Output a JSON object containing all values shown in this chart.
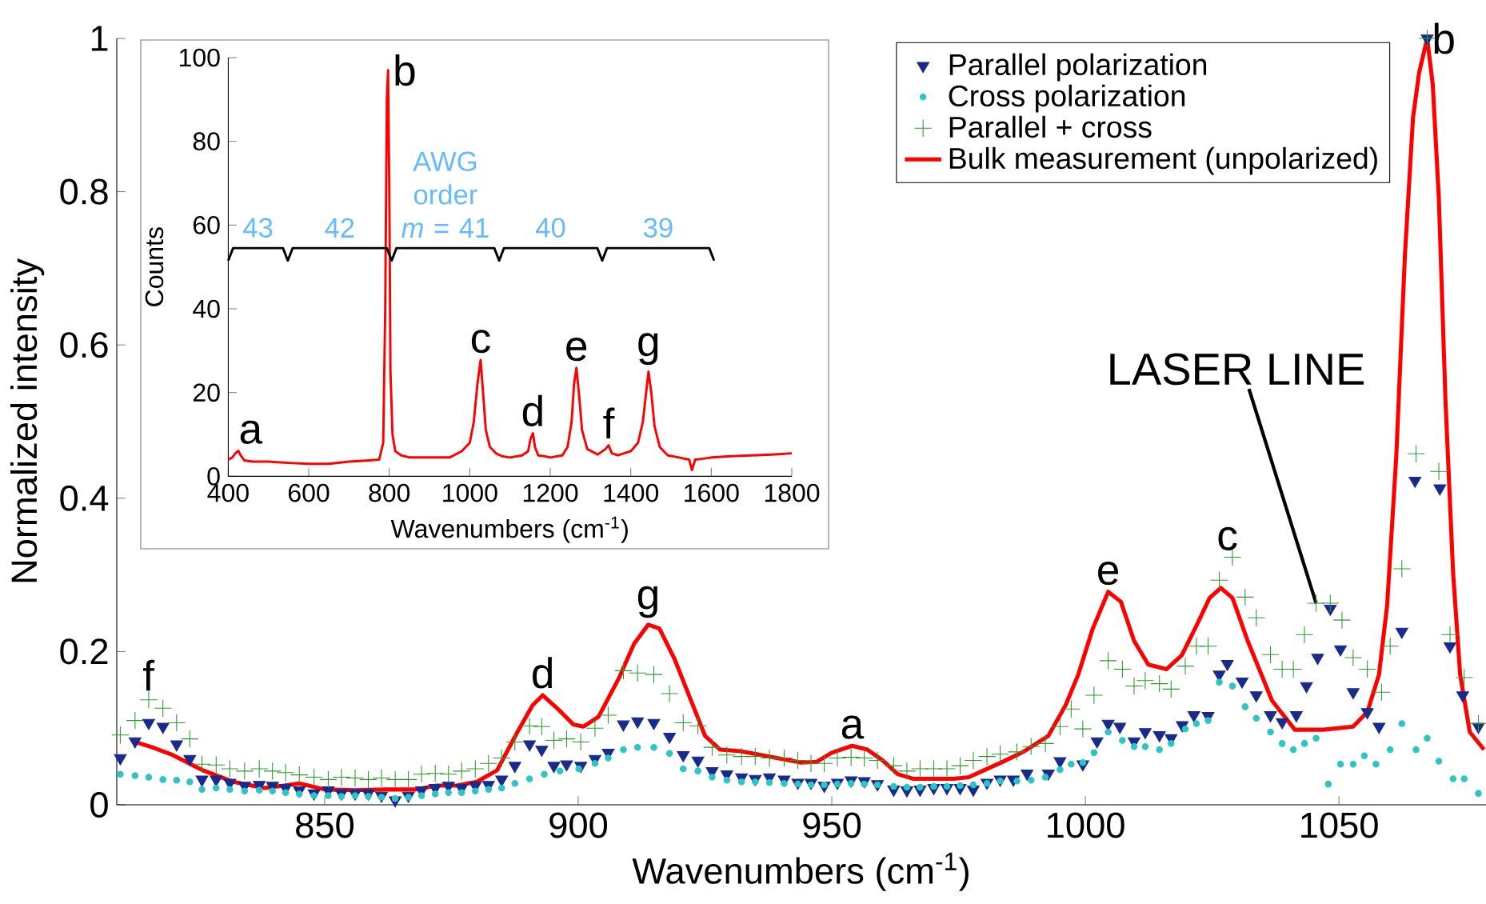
{
  "chart_data": [
    {
      "type": "scatter",
      "xlabel": "Wavenumbers (cm$^{-1}$)",
      "ylabel": "Normalized intensity",
      "xlim": [
        809,
        1079
      ],
      "ylim": [
        0,
        1
      ],
      "xticks": [
        850,
        900,
        950,
        1000,
        1050
      ],
      "yticks": [
        0,
        0.2,
        0.4,
        0.6,
        0.8,
        1
      ],
      "legend": "top right",
      "series": [
        {
          "name": "Parallel polarization",
          "type": "scatter",
          "marker": "triangle",
          "color": "#1a2a8a",
          "x": [
            809.7,
            812.6,
            815.3,
            818.1,
            820.8,
            823.4,
            825.8,
            828.6,
            831.3,
            834.2,
            837.1,
            839.7,
            842.3,
            845.0,
            847.9,
            850.7,
            853.3,
            856.0,
            858.6,
            861.2,
            863.9,
            866.5,
            869.1,
            871.8,
            874.4,
            877.0,
            879.7,
            882.3,
            884.9,
            887.5,
            890.4,
            892.8,
            895.2,
            897.7,
            900.5,
            903.3,
            905.9,
            908.9,
            911.7,
            914.9,
            918.0,
            920.7,
            923.6,
            926.4,
            929.3,
            932.2,
            934.9,
            937.7,
            940.6,
            943.3,
            945.9,
            948.5,
            951.1,
            953.8,
            956.4,
            959.0,
            962.2,
            964.8,
            967.4,
            970.1,
            972.7,
            975.3,
            977.9,
            980.6,
            983.2,
            985.8,
            988.5,
            992.7,
            995.0,
            999.5,
            1002.3,
            1004.5,
            1006.8,
            1009.6,
            1011.8,
            1014.6,
            1016.9,
            1019.1,
            1021.4,
            1024.2,
            1026.4,
            1028.0,
            1030.9,
            1033.7,
            1036.5,
            1038.8,
            1041.6,
            1043.6,
            1045.8,
            1048.3,
            1050.3,
            1052.8,
            1055.6,
            1057.9,
            1062.4,
            1065.0,
            1067.4,
            1069.9,
            1071.9,
            1074.4,
            1077.5
          ],
          "values": [
            0.061,
            0.083,
            0.107,
            0.102,
            0.079,
            0.06,
            0.033,
            0.033,
            0.029,
            0.025,
            0.026,
            0.025,
            0.022,
            0.019,
            0.015,
            0.019,
            0.015,
            0.015,
            0.015,
            0.012,
            0.006,
            0.012,
            0.019,
            0.022,
            0.025,
            0.022,
            0.025,
            0.026,
            0.033,
            0.051,
            0.079,
            0.072,
            0.051,
            0.053,
            0.051,
            0.06,
            0.068,
            0.105,
            0.109,
            0.107,
            0.089,
            0.065,
            0.058,
            0.044,
            0.04,
            0.036,
            0.034,
            0.036,
            0.033,
            0.029,
            0.029,
            0.025,
            0.029,
            0.032,
            0.031,
            0.027,
            0.02,
            0.019,
            0.02,
            0.022,
            0.022,
            0.022,
            0.02,
            0.029,
            0.033,
            0.033,
            0.041,
            0.041,
            0.057,
            0.053,
            0.083,
            0.106,
            0.102,
            0.083,
            0.095,
            0.091,
            0.087,
            0.104,
            0.117,
            0.116,
            0.17,
            0.184,
            0.161,
            0.143,
            0.117,
            0.108,
            0.117,
            0.155,
            0.192,
            0.256,
            0.203,
            0.147,
            0.121,
            0.102,
            0.226,
            0.423,
            1.0,
            0.413,
            0.207,
            0.143,
            0.102
          ]
        },
        {
          "name": "Cross polarization",
          "type": "scatter",
          "marker": "circle",
          "color": "#2ec4c4",
          "x": [
            809.7,
            812.6,
            815.3,
            818.1,
            820.8,
            823.4,
            825.8,
            828.6,
            831.3,
            834.2,
            837.1,
            839.7,
            842.3,
            845.0,
            847.9,
            850.7,
            853.3,
            856.0,
            858.6,
            861.2,
            863.9,
            866.5,
            869.1,
            871.8,
            874.4,
            877.0,
            879.7,
            882.3,
            884.9,
            887.5,
            890.4,
            893.3,
            896.4,
            900.1,
            903.3,
            905.9,
            908.9,
            911.7,
            914.9,
            918.0,
            920.7,
            923.6,
            926.4,
            929.3,
            932.2,
            934.9,
            937.7,
            940.6,
            943.3,
            945.9,
            948.5,
            951.1,
            953.8,
            956.4,
            959.0,
            962.2,
            964.8,
            967.4,
            970.1,
            972.7,
            975.3,
            977.9,
            980.6,
            983.2,
            986.5,
            989.3,
            992.1,
            995.0,
            997.2,
            999.5,
            1001.7,
            1004.5,
            1007.3,
            1009.6,
            1011.8,
            1014.6,
            1016.9,
            1019.7,
            1021.9,
            1024.2,
            1026.4,
            1029.0,
            1031.5,
            1033.7,
            1036.5,
            1038.8,
            1041.0,
            1043.2,
            1045.5,
            1047.9,
            1050.3,
            1052.8,
            1055.0,
            1057.3,
            1060.1,
            1062.4,
            1065.2,
            1067.4,
            1069.7,
            1072.5,
            1074.7,
            1077.5
          ],
          "values": [
            0.04,
            0.038,
            0.036,
            0.033,
            0.032,
            0.03,
            0.02,
            0.022,
            0.02,
            0.018,
            0.019,
            0.018,
            0.016,
            0.014,
            0.012,
            0.012,
            0.011,
            0.012,
            0.011,
            0.01,
            0.008,
            0.01,
            0.012,
            0.014,
            0.016,
            0.016,
            0.018,
            0.02,
            0.022,
            0.028,
            0.034,
            0.04,
            0.044,
            0.047,
            0.054,
            0.061,
            0.072,
            0.075,
            0.075,
            0.067,
            0.047,
            0.044,
            0.036,
            0.032,
            0.03,
            0.03,
            0.029,
            0.028,
            0.027,
            0.026,
            0.026,
            0.027,
            0.028,
            0.027,
            0.026,
            0.024,
            0.023,
            0.023,
            0.024,
            0.024,
            0.025,
            0.026,
            0.028,
            0.031,
            0.031,
            0.032,
            0.036,
            0.046,
            0.053,
            0.055,
            0.068,
            0.095,
            0.084,
            0.076,
            0.076,
            0.072,
            0.08,
            0.099,
            0.106,
            0.11,
            0.16,
            0.155,
            0.128,
            0.113,
            0.095,
            0.08,
            0.072,
            0.08,
            0.087,
            0.027,
            0.053,
            0.053,
            0.064,
            0.053,
            0.072,
            0.106,
            0.072,
            0.087,
            0.057,
            0.034,
            0.034,
            0.015
          ]
        },
        {
          "name": "Parallel + cross",
          "type": "scatter",
          "marker": "cross",
          "color": "#2e9a2e",
          "x": [
            809.7,
            812.6,
            815.3,
            818.1,
            820.8,
            823.4,
            825.8,
            828.6,
            831.3,
            834.2,
            837.1,
            839.7,
            842.3,
            845.0,
            847.9,
            850.7,
            853.3,
            856.0,
            858.6,
            861.2,
            863.9,
            866.5,
            869.1,
            871.8,
            874.4,
            877.0,
            879.7,
            882.3,
            884.9,
            887.5,
            890.4,
            892.8,
            895.2,
            897.7,
            900.5,
            903.3,
            905.9,
            908.9,
            911.7,
            914.9,
            918.0,
            920.7,
            923.6,
            926.4,
            929.3,
            932.2,
            934.9,
            937.7,
            940.6,
            943.3,
            945.9,
            948.5,
            951.1,
            953.8,
            956.4,
            959.0,
            962.2,
            964.8,
            967.4,
            970.1,
            972.7,
            975.3,
            977.9,
            980.6,
            983.2,
            986.5,
            989.3,
            992.1,
            995.0,
            997.2,
            999.5,
            1001.7,
            1004.5,
            1007.3,
            1009.6,
            1011.8,
            1014.6,
            1016.9,
            1019.7,
            1021.9,
            1024.2,
            1026.4,
            1029.0,
            1031.5,
            1033.7,
            1036.5,
            1038.8,
            1041.0,
            1043.2,
            1045.5,
            1048.3,
            1050.6,
            1052.8,
            1055.6,
            1058.4,
            1060.1,
            1062.4,
            1065.2,
            1067.4,
            1069.7,
            1071.9,
            1074.7,
            1077.5
          ],
          "values": [
            0.091,
            0.11,
            0.137,
            0.126,
            0.107,
            0.086,
            0.053,
            0.052,
            0.047,
            0.044,
            0.047,
            0.044,
            0.042,
            0.039,
            0.036,
            0.033,
            0.036,
            0.035,
            0.033,
            0.035,
            0.033,
            0.033,
            0.04,
            0.041,
            0.04,
            0.044,
            0.047,
            0.054,
            0.061,
            0.082,
            0.103,
            0.102,
            0.084,
            0.086,
            0.082,
            0.1,
            0.117,
            0.175,
            0.172,
            0.17,
            0.145,
            0.107,
            0.103,
            0.075,
            0.065,
            0.063,
            0.063,
            0.061,
            0.061,
            0.058,
            0.054,
            0.054,
            0.061,
            0.062,
            0.061,
            0.058,
            0.051,
            0.044,
            0.047,
            0.047,
            0.047,
            0.051,
            0.058,
            0.063,
            0.066,
            0.069,
            0.076,
            0.08,
            0.102,
            0.125,
            0.099,
            0.143,
            0.188,
            0.177,
            0.155,
            0.162,
            0.158,
            0.151,
            0.181,
            0.207,
            0.207,
            0.293,
            0.323,
            0.271,
            0.244,
            0.196,
            0.177,
            0.177,
            0.222,
            0.263,
            0.263,
            0.241,
            0.192,
            0.177,
            0.147,
            0.207,
            0.308,
            0.458,
            1.0,
            0.435,
            0.222,
            0.166,
            0.106
          ]
        },
        {
          "name": "Bulk measurement (unpolarized)",
          "type": "line",
          "marker": "none",
          "color": "#ff0000",
          "x": [
            812.6,
            816,
            820,
            826,
            832,
            838,
            842,
            845,
            850,
            856,
            862,
            868,
            872,
            876,
            880,
            884,
            888,
            891,
            893,
            896,
            899,
            901,
            904,
            908,
            911,
            913.8,
            916,
            919,
            922,
            925,
            928,
            932,
            936,
            940,
            944,
            947,
            950,
            954,
            957,
            960,
            963,
            966,
            970,
            974,
            977,
            980,
            984,
            988,
            992.7,
            996.1,
            998.6,
            1001.4,
            1004.5,
            1007,
            1009.6,
            1012.4,
            1016,
            1019,
            1022,
            1024.5,
            1026.7,
            1029,
            1032,
            1036.8,
            1041.3,
            1047,
            1052.8,
            1055.6,
            1057.9,
            1059.5,
            1061.3,
            1063.0,
            1064.6,
            1065.8,
            1067.4,
            1068.5,
            1069.7,
            1071.0,
            1072.5,
            1073.9,
            1075.8,
            1078.6
          ],
          "values": [
            0.082,
            0.075,
            0.065,
            0.045,
            0.03,
            0.022,
            0.025,
            0.028,
            0.02,
            0.019,
            0.02,
            0.02,
            0.025,
            0.025,
            0.03,
            0.045,
            0.095,
            0.13,
            0.143,
            0.125,
            0.105,
            0.102,
            0.115,
            0.165,
            0.21,
            0.235,
            0.23,
            0.19,
            0.14,
            0.09,
            0.072,
            0.07,
            0.065,
            0.06,
            0.055,
            0.056,
            0.068,
            0.077,
            0.072,
            0.058,
            0.04,
            0.034,
            0.034,
            0.034,
            0.036,
            0.045,
            0.057,
            0.07,
            0.09,
            0.13,
            0.17,
            0.229,
            0.278,
            0.265,
            0.214,
            0.183,
            0.177,
            0.195,
            0.235,
            0.27,
            0.283,
            0.27,
            0.214,
            0.136,
            0.098,
            0.098,
            0.102,
            0.121,
            0.17,
            0.26,
            0.454,
            0.716,
            0.896,
            0.955,
            1.0,
            0.94,
            0.791,
            0.529,
            0.304,
            0.17,
            0.095,
            0.072
          ]
        }
      ],
      "annotations": [
        {
          "text": "f",
          "x": 814,
          "y": 0.14
        },
        {
          "text": "d",
          "x": 893,
          "y": 0.143
        },
        {
          "text": "g",
          "x": 913.8,
          "y": 0.235
        },
        {
          "text": "a",
          "x": 954,
          "y": 0.077
        },
        {
          "text": "e",
          "x": 1004.5,
          "y": 0.278
        },
        {
          "text": "c",
          "x": 1028,
          "y": 0.323
        },
        {
          "text": "b",
          "x": 1067.4,
          "y": 1.0
        },
        {
          "text": "LASER LINE",
          "x": 1045.5,
          "y": 0.263
        }
      ]
    },
    {
      "type": "line",
      "xlabel": "Wavenumbers (cm$^{-1}$)",
      "ylabel": "Counts",
      "xlim": [
        400,
        1800
      ],
      "ylim": [
        0,
        100
      ],
      "xticks": [
        400,
        600,
        800,
        1000,
        1200,
        1400,
        1600,
        1800
      ],
      "yticks": [
        0,
        20,
        40,
        60,
        80,
        100
      ],
      "series": [
        {
          "color": "#ff0000",
          "x": [
            400,
            410,
            418,
            425,
            431,
            440,
            460,
            500,
            550,
            600,
            650,
            700,
            750,
            775,
            785,
            790,
            794,
            797,
            800,
            803,
            808,
            815,
            830,
            850,
            900,
            950,
            980,
            1000,
            1010,
            1019,
            1027,
            1033,
            1040,
            1050,
            1065,
            1080,
            1100,
            1130,
            1145,
            1151,
            1157,
            1162,
            1170,
            1185,
            1200,
            1230,
            1243,
            1253,
            1259,
            1265,
            1271,
            1279,
            1292,
            1318,
            1337,
            1345,
            1353,
            1368,
            1400,
            1418,
            1430,
            1437,
            1444,
            1451,
            1459,
            1472,
            1492,
            1520,
            1545,
            1552,
            1560,
            1580,
            1600,
            1650,
            1700,
            1750,
            1800
          ],
          "values": [
            4,
            4.5,
            5.5,
            6.1,
            5,
            3.8,
            3.5,
            3.5,
            3.2,
            3,
            3,
            3.5,
            3.8,
            4,
            8,
            40,
            90,
            97,
            70,
            25,
            10,
            6,
            5,
            4.5,
            4.5,
            4.5,
            6,
            8,
            13,
            22,
            27.8,
            20,
            11,
            7,
            5.5,
            4.8,
            4.5,
            5,
            6,
            9,
            10.3,
            7,
            5,
            4.8,
            4.5,
            5,
            7,
            13,
            22,
            25.9,
            20,
            11,
            6.5,
            5.2,
            6.5,
            7.4,
            5.5,
            5,
            6,
            8,
            13,
            19,
            25,
            20,
            12,
            7,
            5,
            4.5,
            4,
            1.5,
            4,
            4.2,
            4.5,
            4.8,
            5,
            5.2,
            5.5
          ]
        },
        {
          "color": "#000000",
          "x": [
            400,
            412,
            536,
            548,
            560,
            794,
            806,
            818,
            1061,
            1073,
            1085,
            1317,
            1329,
            1341,
            1595,
            1607
          ],
          "values": [
            51.5,
            54.5,
            54.5,
            51.5,
            54.5,
            54.5,
            51.5,
            54.5,
            54.5,
            51.5,
            54.5,
            54.5,
            51.5,
            54.5,
            54.5,
            51.5
          ]
        }
      ],
      "annotations": [
        {
          "text": "a",
          "x": 425,
          "y": 6.1
        },
        {
          "text": "b",
          "x": 797,
          "y": 97
        },
        {
          "text": "c",
          "x": 1027,
          "y": 27.8
        },
        {
          "text": "d",
          "x": 1157,
          "y": 10.3
        },
        {
          "text": "e",
          "x": 1265,
          "y": 25.9
        },
        {
          "text": "f",
          "x": 1345,
          "y": 7.4
        },
        {
          "text": "g",
          "x": 1444,
          "y": 25
        },
        {
          "text": "43",
          "x": 474,
          "y": 54.5
        },
        {
          "text": "42",
          "x": 677,
          "y": 54.5
        },
        {
          "text": "AWG order *m* = 41",
          "x": 939.5,
          "y": 54.5
        },
        {
          "text": "40",
          "x": 1201,
          "y": 54.5
        },
        {
          "text": "39",
          "x": 1468,
          "y": 54.5
        }
      ]
    }
  ]
}
